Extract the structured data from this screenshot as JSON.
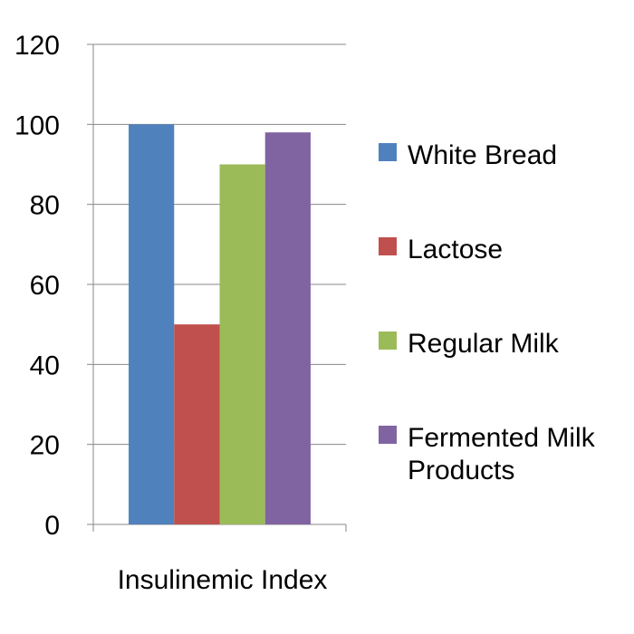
{
  "chart_data": {
    "type": "bar",
    "categories": [
      "Insulinemic Index"
    ],
    "series": [
      {
        "name": "White Bread",
        "values": [
          100
        ],
        "color": "#4F81BD"
      },
      {
        "name": "Lactose",
        "values": [
          50
        ],
        "color": "#C0504D"
      },
      {
        "name": "Regular Milk",
        "values": [
          90
        ],
        "color": "#9BBB59"
      },
      {
        "name": "Fermented Milk Products",
        "values": [
          98
        ],
        "color": "#8064A2"
      }
    ],
    "ylim": [
      0,
      120
    ],
    "yticks": [
      0,
      20,
      40,
      60,
      80,
      100,
      120
    ],
    "grid": true,
    "legend_position": "right",
    "title": "",
    "xlabel": "",
    "ylabel": ""
  },
  "legend": {
    "items": [
      {
        "label": "White Bread"
      },
      {
        "label": "Lactose"
      },
      {
        "label": "Regular Milk"
      },
      {
        "label": "Fermented Milk Products"
      }
    ]
  }
}
